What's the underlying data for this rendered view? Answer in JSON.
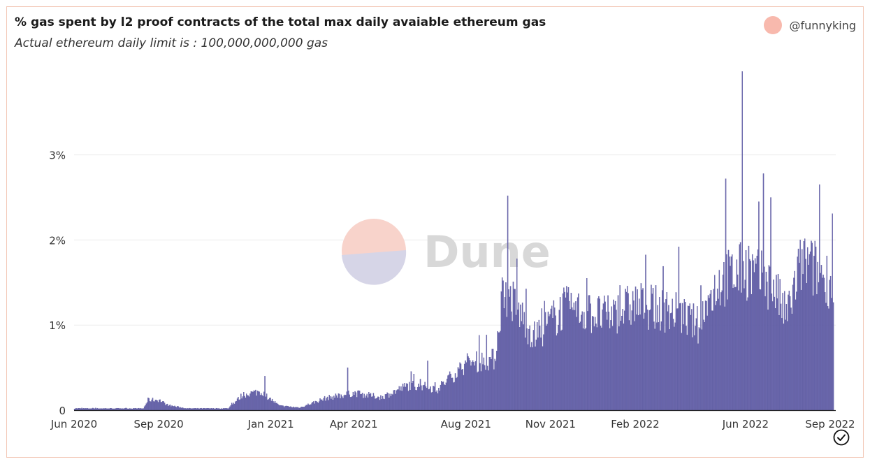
{
  "header": {
    "title": "% gas spent by l2 proof contracts of the total max daily avaiable ethereum gas",
    "subtitle": "Actual ethereum daily limit is : 100,000,000,000 gas",
    "author": "@funnyking"
  },
  "watermark": {
    "text": "Dune"
  },
  "colors": {
    "bar": "#6b68ad",
    "bar_edge": "#4e4b95",
    "grid": "#ececec",
    "axis_text": "#333333",
    "avatar": "#f8b9ad",
    "watermark_top": "#f8d3cb",
    "watermark_bottom": "#d6d5e7",
    "watermark_text": "#d8d8d8"
  },
  "icons": {
    "status": "check-circle-icon"
  },
  "chart_data": {
    "type": "bar",
    "xlabel": "",
    "ylabel": "",
    "ylim": [
      0,
      4.0
    ],
    "grid": true,
    "y_ticks": [
      {
        "value": 0,
        "label": "0"
      },
      {
        "value": 1,
        "label": "1%"
      },
      {
        "value": 2,
        "label": "2%"
      },
      {
        "value": 3,
        "label": "3%"
      }
    ],
    "x_ticks": [
      {
        "date": "2020-06-01",
        "label": "Jun 2020"
      },
      {
        "date": "2020-09-01",
        "label": "Sep 2020"
      },
      {
        "date": "2021-01-01",
        "label": "Jan 2021"
      },
      {
        "date": "2021-04-01",
        "label": "Apr 2021"
      },
      {
        "date": "2021-08-01",
        "label": "Aug 2021"
      },
      {
        "date": "2021-11-01",
        "label": "Nov 2021"
      },
      {
        "date": "2022-02-01",
        "label": "Feb 2022"
      },
      {
        "date": "2022-06-01",
        "label": "Jun 2022"
      },
      {
        "date": "2022-09-01",
        "label": "Sep 2022"
      }
    ],
    "series": [
      {
        "x_start": "2020-06-01",
        "x_end": "2022-09-04",
        "interval": "1 day",
        "profile_anchors": [
          [
            "2020-06-01",
            0.02
          ],
          [
            "2020-08-15",
            0.02
          ],
          [
            "2020-08-20",
            0.12
          ],
          [
            "2020-09-01",
            0.12
          ],
          [
            "2020-09-10",
            0.06
          ],
          [
            "2020-10-01",
            0.02
          ],
          [
            "2020-11-15",
            0.02
          ],
          [
            "2020-12-01",
            0.18
          ],
          [
            "2020-12-20",
            0.22
          ],
          [
            "2021-01-10",
            0.05
          ],
          [
            "2021-02-01",
            0.03
          ],
          [
            "2021-03-01",
            0.14
          ],
          [
            "2021-04-01",
            0.2
          ],
          [
            "2021-05-01",
            0.15
          ],
          [
            "2021-06-01",
            0.3
          ],
          [
            "2021-07-01",
            0.25
          ],
          [
            "2021-08-01",
            0.55
          ],
          [
            "2021-09-01",
            0.6
          ],
          [
            "2021-09-10",
            1.45
          ],
          [
            "2021-10-15",
            0.85
          ],
          [
            "2021-11-15",
            1.2
          ],
          [
            "2022-01-01",
            1.1
          ],
          [
            "2022-02-01",
            1.25
          ],
          [
            "2022-03-15",
            1.15
          ],
          [
            "2022-04-10",
            1.0
          ],
          [
            "2022-05-01",
            1.5
          ],
          [
            "2022-06-01",
            1.65
          ],
          [
            "2022-07-01",
            1.45
          ],
          [
            "2022-07-15",
            1.1
          ],
          [
            "2022-08-01",
            1.75
          ],
          [
            "2022-09-04",
            1.5
          ]
        ],
        "peaks": [
          [
            "2021-09-15",
            2.52
          ],
          [
            "2021-09-25",
            1.78
          ],
          [
            "2021-12-10",
            1.55
          ],
          [
            "2022-03-20",
            1.92
          ],
          [
            "2022-05-10",
            2.72
          ],
          [
            "2022-05-28",
            3.98
          ],
          [
            "2022-06-15",
            2.45
          ],
          [
            "2022-06-20",
            2.78
          ],
          [
            "2022-06-28",
            2.5
          ],
          [
            "2022-08-20",
            2.65
          ],
          [
            "2022-09-03",
            2.31
          ],
          [
            "2021-08-15",
            0.88
          ],
          [
            "2021-06-20",
            0.58
          ],
          [
            "2021-03-25",
            0.5
          ],
          [
            "2020-12-25",
            0.4
          ]
        ]
      }
    ]
  }
}
